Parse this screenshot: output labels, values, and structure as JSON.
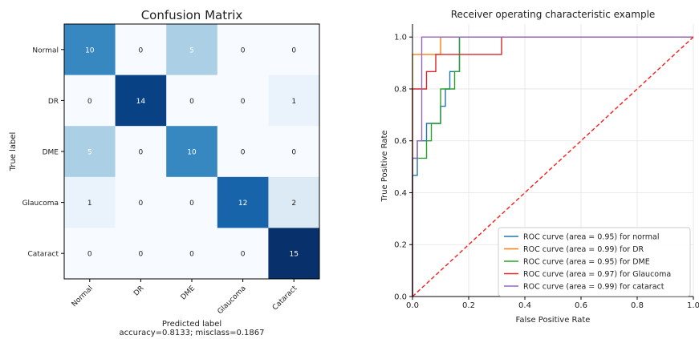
{
  "chart_data": [
    {
      "type": "heatmap",
      "title": "Confusion Matrix",
      "ylabel": "True label",
      "xlabel": "Predicted label",
      "xlabel_sub": "accuracy=0.8133; misclass=0.1867",
      "row_labels": [
        "Normal",
        "DR",
        "DME",
        "Glaucoma",
        "Cataract"
      ],
      "col_labels": [
        "Normal",
        "DR",
        "DME",
        "Glaucoma",
        "Cataract"
      ],
      "values": [
        [
          10,
          0,
          5,
          0,
          0
        ],
        [
          0,
          14,
          0,
          0,
          1
        ],
        [
          5,
          0,
          10,
          0,
          0
        ],
        [
          1,
          0,
          0,
          12,
          2
        ],
        [
          0,
          0,
          0,
          0,
          15
        ]
      ],
      "vmin": 0,
      "vmax": 15,
      "colormap": "Blues"
    },
    {
      "type": "line",
      "title": "Receiver operating characteristic example",
      "xlabel": "False Positive Rate",
      "ylabel": "True Positive Rate",
      "xlim": [
        0,
        1
      ],
      "ylim": [
        0,
        1.05
      ],
      "xticks": [
        "0.0",
        "0.2",
        "0.4",
        "0.6",
        "0.8",
        "1.0"
      ],
      "yticks": [
        "0.0",
        "0.2",
        "0.4",
        "0.6",
        "0.8",
        "1.0"
      ],
      "grid": true,
      "legend_position": "lower-right",
      "series": [
        {
          "name": "ROC curve (area = 0.95) for normal",
          "color": "#1f77b4",
          "points": [
            [
              0,
              0
            ],
            [
              0,
              0.467
            ],
            [
              0.017,
              0.467
            ],
            [
              0.017,
              0.6
            ],
            [
              0.05,
              0.6
            ],
            [
              0.05,
              0.667
            ],
            [
              0.1,
              0.667
            ],
            [
              0.1,
              0.733
            ],
            [
              0.117,
              0.733
            ],
            [
              0.117,
              0.8
            ],
            [
              0.133,
              0.8
            ],
            [
              0.133,
              0.867
            ],
            [
              0.167,
              0.867
            ],
            [
              0.167,
              1.0
            ],
            [
              1,
              1
            ]
          ]
        },
        {
          "name": "ROC curve (area = 0.99) for DR",
          "color": "#ff7f0e",
          "points": [
            [
              0,
              0
            ],
            [
              0,
              0.933
            ],
            [
              0.1,
              0.933
            ],
            [
              0.1,
              1.0
            ],
            [
              1,
              1
            ]
          ]
        },
        {
          "name": "ROC curve (area = 0.95) for DME",
          "color": "#2ca02c",
          "points": [
            [
              0,
              0
            ],
            [
              0,
              0.533
            ],
            [
              0.05,
              0.533
            ],
            [
              0.05,
              0.6
            ],
            [
              0.067,
              0.6
            ],
            [
              0.067,
              0.667
            ],
            [
              0.1,
              0.667
            ],
            [
              0.1,
              0.8
            ],
            [
              0.15,
              0.8
            ],
            [
              0.15,
              0.867
            ],
            [
              0.167,
              0.867
            ],
            [
              0.167,
              1.0
            ],
            [
              1,
              1
            ]
          ]
        },
        {
          "name": "ROC curve (area = 0.97) for Glaucoma",
          "color": "#d62728",
          "points": [
            [
              0,
              0
            ],
            [
              0,
              0.8
            ],
            [
              0.05,
              0.8
            ],
            [
              0.05,
              0.867
            ],
            [
              0.083,
              0.867
            ],
            [
              0.083,
              0.933
            ],
            [
              0.317,
              0.933
            ],
            [
              0.317,
              1.0
            ],
            [
              1,
              1
            ]
          ]
        },
        {
          "name": "ROC curve (area = 0.99) for cataract",
          "color": "#9467bd",
          "points": [
            [
              0,
              0
            ],
            [
              0,
              0.533
            ],
            [
              0.017,
              0.533
            ],
            [
              0.017,
              0.6
            ],
            [
              0.033,
              0.6
            ],
            [
              0.033,
              1.0
            ],
            [
              1,
              1
            ]
          ]
        }
      ],
      "reference_line": {
        "color": "#ff1a1a",
        "style": "dashed",
        "points": [
          [
            0,
            0
          ],
          [
            1,
            1
          ]
        ]
      }
    }
  ]
}
